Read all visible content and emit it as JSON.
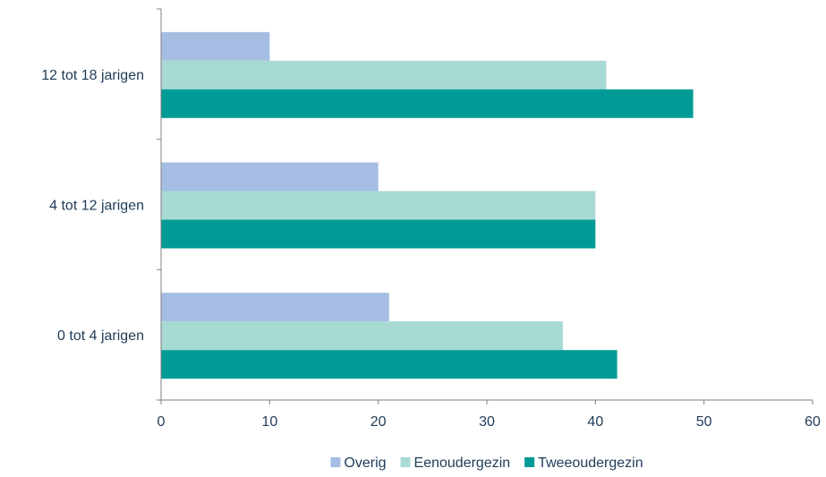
{
  "chart_data": {
    "type": "bar",
    "orientation": "horizontal",
    "categories": [
      "12 tot 18 jarigen",
      "4 tot 12 jarigen",
      "0 tot 4 jarigen"
    ],
    "series": [
      {
        "name": "Overig",
        "color": "#a5bde2",
        "values": [
          10,
          20,
          21
        ]
      },
      {
        "name": "Eenoudergezin",
        "color": "#a7dad3",
        "values": [
          41,
          40,
          37
        ]
      },
      {
        "name": "Tweeoudergezin",
        "color": "#009b96",
        "values": [
          49,
          40,
          42
        ]
      }
    ],
    "xlim": [
      0,
      60
    ],
    "xticks": [
      "0",
      "10",
      "20",
      "30",
      "40",
      "50",
      "60"
    ],
    "grid": false,
    "legend_position": "bottom",
    "title": "",
    "xlabel": "",
    "ylabel": ""
  }
}
